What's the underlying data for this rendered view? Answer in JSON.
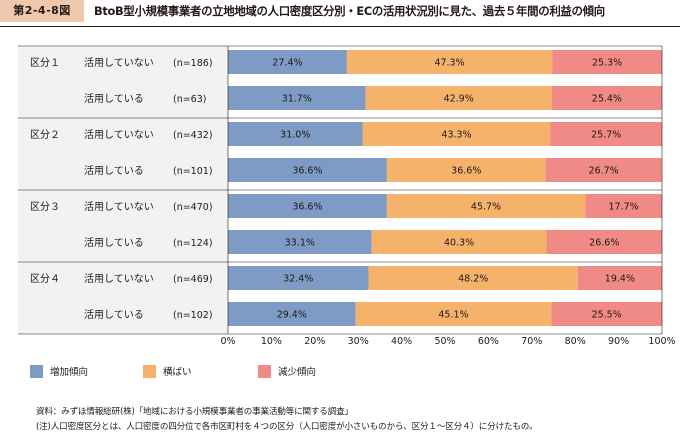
{
  "figure": {
    "label": "第2-4-8図",
    "title": "BtoB型小規模事業者の立地地域の人口密度区分別・ECの活用状況別に見た、過去５年間の利益の傾向"
  },
  "notes": {
    "source": "資料：みずほ情報総研(株)「地域における小規模事業者の事業活動等に関する調査」",
    "note": "(注)人口密度区分とは、人口密度の四分位で各市区町村を４つの区分（人口密度が小さいものから、区分１～区分４）に分けたもの。"
  },
  "chart_data": {
    "type": "bar",
    "orientation": "horizontal",
    "stacked": true,
    "groups": [
      {
        "name": "区分１",
        "rows": [
          {
            "status": "活用していない",
            "n": "(n=186)",
            "values": [
              27.4,
              47.3,
              25.3
            ]
          },
          {
            "status": "活用している",
            "n": "(n=63)",
            "values": [
              31.7,
              42.9,
              25.4
            ]
          }
        ]
      },
      {
        "name": "区分２",
        "rows": [
          {
            "status": "活用していない",
            "n": "(n=432)",
            "values": [
              31.0,
              43.3,
              25.7
            ]
          },
          {
            "status": "活用している",
            "n": "(n=101)",
            "values": [
              36.6,
              36.6,
              26.7
            ]
          }
        ]
      },
      {
        "name": "区分３",
        "rows": [
          {
            "status": "活用していない",
            "n": "(n=470)",
            "values": [
              36.6,
              45.7,
              17.7
            ]
          },
          {
            "status": "活用している",
            "n": "(n=124)",
            "values": [
              33.1,
              40.3,
              26.6
            ]
          }
        ]
      },
      {
        "name": "区分４",
        "rows": [
          {
            "status": "活用していない",
            "n": "(n=469)",
            "values": [
              32.4,
              48.2,
              19.4
            ]
          },
          {
            "status": "活用している",
            "n": "(n=102)",
            "values": [
              29.4,
              45.1,
              25.5
            ]
          }
        ]
      }
    ],
    "series": [
      {
        "name": "増加傾向",
        "color": "#7d9bc4"
      },
      {
        "name": "横ばい",
        "color": "#f5b26b"
      },
      {
        "name": "減少傾向",
        "color": "#f08a86"
      }
    ],
    "xlim": [
      0,
      100
    ],
    "xticks": [
      "0%",
      "10%",
      "20%",
      "30%",
      "40%",
      "50%",
      "60%",
      "70%",
      "80%",
      "90%",
      "100%"
    ],
    "value_suffix": "%",
    "legend_position": "bottom"
  }
}
